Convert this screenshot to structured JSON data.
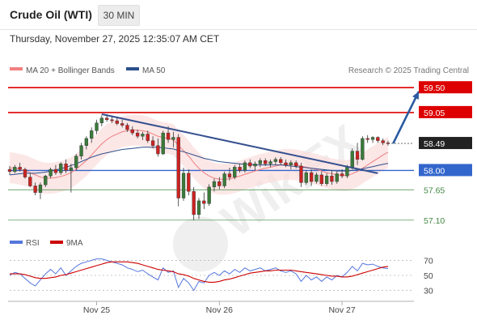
{
  "header": {
    "title": "Crude Oil (WTI)",
    "timeframe": "30 MIN",
    "datetime": "Thursday, November 27, 2025 12:35:07 AM CET"
  },
  "legend": {
    "ma20_label": "MA 20 + Bollinger Bands",
    "ma50_label": "MA 50",
    "copyright": "Research © 2025 Trading Central",
    "rsi_label": "RSI",
    "rsi_ma_label": "9MA"
  },
  "watermark": {
    "text": "WikiFX"
  },
  "colors": {
    "resistance": "#dd0000",
    "support": "#3366cc",
    "support_green": "#448844",
    "last_price_bg": "#222222",
    "ma20": "#f08080",
    "ma50": "#2c4f8c",
    "rsi": "#5577dd",
    "rsi_ma": "#cc0000",
    "trendline": "#36508f",
    "arrow": "#2a5aa0",
    "candle_up": "#3a7a3a",
    "candle_down": "#cc2222"
  },
  "chart_data": [
    {
      "type": "candlestick",
      "panel": "price",
      "ylim": [
        56.95,
        59.65
      ],
      "x_ticks": [
        "Nov 25",
        "Nov 26",
        "Nov 27"
      ],
      "levels": [
        {
          "value": 59.5,
          "label": "59.50",
          "kind": "resistance"
        },
        {
          "value": 59.05,
          "label": "59.05",
          "kind": "resistance"
        },
        {
          "value": 58.49,
          "label": "58.49",
          "kind": "last"
        },
        {
          "value": 58.0,
          "label": "58.00",
          "kind": "pivot"
        },
        {
          "value": 57.65,
          "label": "57.65",
          "kind": "support"
        },
        {
          "value": 57.1,
          "label": "57.10",
          "kind": "support"
        }
      ],
      "candles": [
        {
          "o": 58.02,
          "h": 58.08,
          "l": 57.92,
          "c": 57.98
        },
        {
          "o": 57.98,
          "h": 58.1,
          "l": 57.95,
          "c": 58.06
        },
        {
          "o": 58.06,
          "h": 58.14,
          "l": 57.98,
          "c": 58.02
        },
        {
          "o": 58.02,
          "h": 58.05,
          "l": 57.85,
          "c": 57.88
        },
        {
          "o": 57.88,
          "h": 57.95,
          "l": 57.7,
          "c": 57.72
        },
        {
          "o": 57.72,
          "h": 57.78,
          "l": 57.55,
          "c": 57.6
        },
        {
          "o": 57.6,
          "h": 57.78,
          "l": 57.48,
          "c": 57.74
        },
        {
          "o": 57.74,
          "h": 57.92,
          "l": 57.7,
          "c": 57.9
        },
        {
          "o": 57.9,
          "h": 58.05,
          "l": 57.86,
          "c": 58.02
        },
        {
          "o": 58.02,
          "h": 58.1,
          "l": 57.92,
          "c": 57.96
        },
        {
          "o": 57.96,
          "h": 58.15,
          "l": 57.92,
          "c": 58.12
        },
        {
          "o": 58.12,
          "h": 58.2,
          "l": 57.95,
          "c": 58.0
        },
        {
          "o": 58.0,
          "h": 58.12,
          "l": 57.6,
          "c": 58.05
        },
        {
          "o": 58.05,
          "h": 58.3,
          "l": 58.0,
          "c": 58.26
        },
        {
          "o": 58.26,
          "h": 58.5,
          "l": 58.2,
          "c": 58.45
        },
        {
          "o": 58.45,
          "h": 58.62,
          "l": 58.38,
          "c": 58.58
        },
        {
          "o": 58.58,
          "h": 58.78,
          "l": 58.5,
          "c": 58.72
        },
        {
          "o": 58.72,
          "h": 58.92,
          "l": 58.66,
          "c": 58.86
        },
        {
          "o": 58.86,
          "h": 59.0,
          "l": 58.8,
          "c": 58.95
        },
        {
          "o": 58.95,
          "h": 59.02,
          "l": 58.88,
          "c": 58.92
        },
        {
          "o": 58.92,
          "h": 58.98,
          "l": 58.86,
          "c": 58.9
        },
        {
          "o": 58.9,
          "h": 58.96,
          "l": 58.82,
          "c": 58.85
        },
        {
          "o": 58.85,
          "h": 58.92,
          "l": 58.78,
          "c": 58.82
        },
        {
          "o": 58.82,
          "h": 58.86,
          "l": 58.7,
          "c": 58.74
        },
        {
          "o": 58.74,
          "h": 58.8,
          "l": 58.64,
          "c": 58.68
        },
        {
          "o": 58.68,
          "h": 58.74,
          "l": 58.58,
          "c": 58.62
        },
        {
          "o": 58.62,
          "h": 58.7,
          "l": 58.55,
          "c": 58.66
        },
        {
          "o": 58.66,
          "h": 58.72,
          "l": 58.5,
          "c": 58.54
        },
        {
          "o": 58.54,
          "h": 58.62,
          "l": 58.4,
          "c": 58.45
        },
        {
          "o": 58.45,
          "h": 58.58,
          "l": 58.25,
          "c": 58.3
        },
        {
          "o": 58.3,
          "h": 58.72,
          "l": 58.28,
          "c": 58.68
        },
        {
          "o": 58.68,
          "h": 58.8,
          "l": 58.5,
          "c": 58.56
        },
        {
          "o": 58.56,
          "h": 58.7,
          "l": 58.42,
          "c": 58.6
        },
        {
          "o": 58.6,
          "h": 58.66,
          "l": 57.35,
          "c": 57.5
        },
        {
          "o": 57.5,
          "h": 58.05,
          "l": 57.45,
          "c": 57.95
        },
        {
          "o": 57.95,
          "h": 58.02,
          "l": 57.55,
          "c": 57.62
        },
        {
          "o": 57.62,
          "h": 57.7,
          "l": 57.1,
          "c": 57.2
        },
        {
          "o": 57.2,
          "h": 57.5,
          "l": 57.12,
          "c": 57.45
        },
        {
          "o": 57.45,
          "h": 57.6,
          "l": 57.3,
          "c": 57.4
        },
        {
          "o": 57.4,
          "h": 57.75,
          "l": 57.36,
          "c": 57.7
        },
        {
          "o": 57.7,
          "h": 57.85,
          "l": 57.62,
          "c": 57.8
        },
        {
          "o": 57.8,
          "h": 57.88,
          "l": 57.66,
          "c": 57.72
        },
        {
          "o": 57.72,
          "h": 57.98,
          "l": 57.68,
          "c": 57.94
        },
        {
          "o": 57.94,
          "h": 58.05,
          "l": 57.82,
          "c": 57.88
        },
        {
          "o": 57.88,
          "h": 58.1,
          "l": 57.84,
          "c": 58.06
        },
        {
          "o": 58.06,
          "h": 58.12,
          "l": 57.96,
          "c": 58.0
        },
        {
          "o": 58.0,
          "h": 58.18,
          "l": 57.96,
          "c": 58.14
        },
        {
          "o": 58.14,
          "h": 58.2,
          "l": 58.04,
          "c": 58.08
        },
        {
          "o": 58.08,
          "h": 58.16,
          "l": 58.0,
          "c": 58.12
        },
        {
          "o": 58.12,
          "h": 58.22,
          "l": 58.06,
          "c": 58.18
        },
        {
          "o": 58.18,
          "h": 58.22,
          "l": 58.08,
          "c": 58.12
        },
        {
          "o": 58.12,
          "h": 58.2,
          "l": 58.06,
          "c": 58.16
        },
        {
          "o": 58.16,
          "h": 58.24,
          "l": 58.1,
          "c": 58.2
        },
        {
          "o": 58.2,
          "h": 58.24,
          "l": 58.1,
          "c": 58.14
        },
        {
          "o": 58.14,
          "h": 58.2,
          "l": 58.06,
          "c": 58.1
        },
        {
          "o": 58.1,
          "h": 58.18,
          "l": 58.02,
          "c": 58.14
        },
        {
          "o": 58.14,
          "h": 58.18,
          "l": 58.04,
          "c": 58.08
        },
        {
          "o": 58.08,
          "h": 58.14,
          "l": 57.7,
          "c": 57.78
        },
        {
          "o": 57.78,
          "h": 58.0,
          "l": 57.74,
          "c": 57.96
        },
        {
          "o": 57.96,
          "h": 58.02,
          "l": 57.72,
          "c": 57.8
        },
        {
          "o": 57.8,
          "h": 57.96,
          "l": 57.76,
          "c": 57.92
        },
        {
          "o": 57.92,
          "h": 57.98,
          "l": 57.72,
          "c": 57.76
        },
        {
          "o": 57.76,
          "h": 57.95,
          "l": 57.72,
          "c": 57.9
        },
        {
          "o": 57.9,
          "h": 58.0,
          "l": 57.74,
          "c": 57.8
        },
        {
          "o": 57.8,
          "h": 57.98,
          "l": 57.76,
          "c": 57.94
        },
        {
          "o": 57.94,
          "h": 58.02,
          "l": 57.86,
          "c": 57.9
        },
        {
          "o": 57.9,
          "h": 58.1,
          "l": 57.86,
          "c": 58.06
        },
        {
          "o": 58.06,
          "h": 58.4,
          "l": 58.02,
          "c": 58.35
        },
        {
          "o": 58.35,
          "h": 58.5,
          "l": 58.1,
          "c": 58.2
        },
        {
          "o": 58.2,
          "h": 58.62,
          "l": 58.18,
          "c": 58.58
        },
        {
          "o": 58.58,
          "h": 58.64,
          "l": 58.5,
          "c": 58.56
        },
        {
          "o": 58.56,
          "h": 58.62,
          "l": 58.5,
          "c": 58.6
        },
        {
          "o": 58.6,
          "h": 58.62,
          "l": 58.5,
          "c": 58.54
        },
        {
          "o": 58.54,
          "h": 58.58,
          "l": 58.46,
          "c": 58.5
        },
        {
          "o": 58.5,
          "h": 58.54,
          "l": 58.45,
          "c": 58.49
        }
      ],
      "ma20": [
        58.05,
        58.04,
        58.02,
        58.0,
        57.96,
        57.92,
        57.88,
        57.86,
        57.86,
        57.87,
        57.89,
        57.92,
        57.96,
        58.02,
        58.1,
        58.18,
        58.28,
        58.38,
        58.48,
        58.56,
        58.62,
        58.66,
        58.7,
        58.72,
        58.73,
        58.73,
        58.72,
        58.7,
        58.66,
        58.62,
        58.6,
        58.58,
        58.56,
        58.45,
        58.36,
        58.26,
        58.14,
        58.04,
        57.96,
        57.9,
        57.86,
        57.84,
        57.84,
        57.85,
        57.87,
        57.9,
        57.93,
        57.96,
        57.99,
        58.02,
        58.04,
        58.06,
        58.08,
        58.1,
        58.11,
        58.11,
        58.1,
        58.08,
        58.06,
        58.04,
        58.02,
        57.99,
        57.96,
        57.94,
        57.92,
        57.91,
        57.91,
        57.94,
        57.98,
        58.04,
        58.1,
        58.16,
        58.22,
        58.28,
        58.33
      ],
      "ma50": [
        57.92,
        57.93,
        57.94,
        57.95,
        57.95,
        57.95,
        57.96,
        57.97,
        57.99,
        58.01,
        58.03,
        58.06,
        58.09,
        58.12,
        58.16,
        58.2,
        58.24,
        58.27,
        58.3,
        58.32,
        58.34,
        58.36,
        58.38,
        58.39,
        58.4,
        58.41,
        58.42,
        58.42,
        58.42,
        58.42,
        58.41,
        58.4,
        58.39,
        58.36,
        58.34,
        58.31,
        58.28,
        58.25,
        58.22,
        58.2,
        58.18,
        58.16,
        58.15,
        58.14,
        58.13,
        58.12,
        58.11,
        58.11,
        58.1,
        58.1,
        58.1,
        58.1,
        58.1,
        58.1,
        58.09,
        58.08,
        58.07,
        58.06,
        58.05,
        58.04,
        58.03,
        58.02,
        58.01,
        58.0,
        57.99,
        57.99,
        57.99,
        58.0,
        58.01,
        58.03,
        58.05,
        58.07,
        58.09,
        58.11,
        58.13
      ],
      "trendline": {
        "start": {
          "i": 18,
          "v": 59.02
        },
        "end": {
          "i": 72,
          "v": 57.95
        }
      },
      "projection": {
        "start": {
          "i": 75,
          "v": 58.49
        },
        "end": {
          "i": 80,
          "v": 59.43
        }
      }
    },
    {
      "type": "line",
      "panel": "rsi",
      "ylim": [
        22,
        78
      ],
      "y_ticks": [
        70,
        50,
        30
      ],
      "series": [
        {
          "name": "RSI",
          "values": [
            50,
            54,
            52,
            46,
            40,
            36,
            44,
            52,
            58,
            52,
            60,
            50,
            56,
            62,
            66,
            68,
            70,
            72,
            72,
            70,
            68,
            66,
            64,
            60,
            58,
            55,
            57,
            52,
            48,
            44,
            60,
            54,
            56,
            34,
            46,
            40,
            30,
            42,
            40,
            50,
            54,
            50,
            56,
            52,
            58,
            54,
            60,
            56,
            58,
            60,
            56,
            58,
            60,
            56,
            54,
            56,
            52,
            42,
            50,
            44,
            48,
            42,
            48,
            44,
            50,
            48,
            54,
            62,
            56,
            66,
            64,
            65,
            62,
            60,
            59
          ]
        },
        {
          "name": "9MA",
          "values": [
            52,
            52,
            52,
            51,
            49,
            47,
            46,
            46,
            47,
            48,
            50,
            51,
            53,
            55,
            57,
            59,
            61,
            63,
            65,
            67,
            68,
            68,
            68,
            68,
            67,
            66,
            64,
            62,
            60,
            58,
            57,
            56,
            55,
            52,
            51,
            49,
            46,
            44,
            42,
            41,
            41,
            42,
            44,
            45,
            47,
            49,
            51,
            53,
            54,
            55,
            56,
            56,
            57,
            57,
            57,
            57,
            56,
            55,
            54,
            53,
            52,
            51,
            50,
            49,
            49,
            48,
            48,
            49,
            51,
            53,
            55,
            57,
            59,
            61,
            62
          ]
        }
      ]
    }
  ]
}
